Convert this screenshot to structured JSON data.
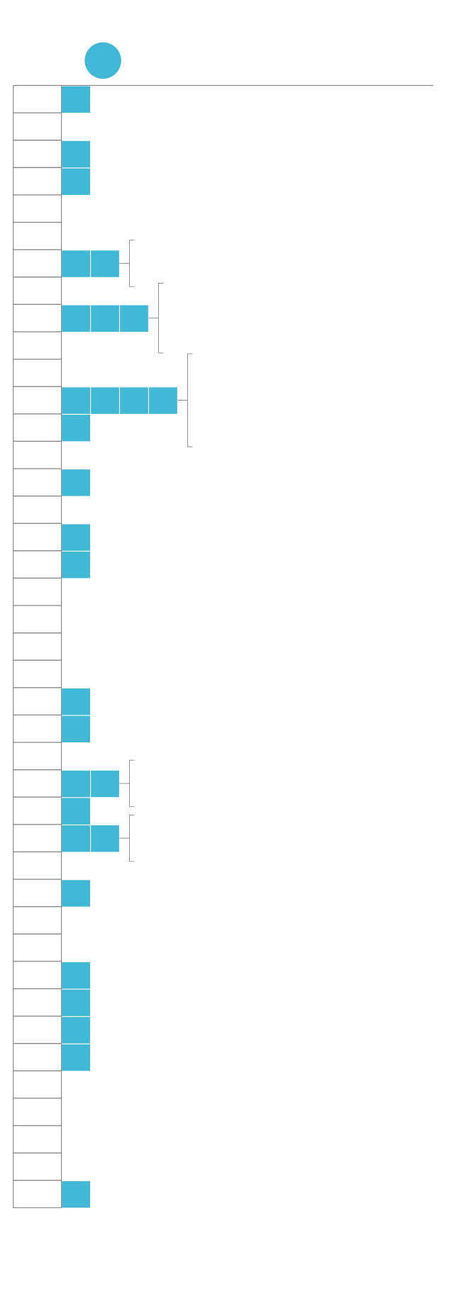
{
  "chart_data": {
    "type": "pictogram",
    "color": "#41b8d5",
    "values": [
      1,
      0,
      1,
      1,
      0,
      0,
      2,
      0,
      3,
      0,
      0,
      4,
      1,
      0,
      1,
      0,
      1,
      1,
      0,
      0,
      0,
      0,
      1,
      1,
      0,
      2,
      1,
      2,
      0,
      1,
      0,
      0,
      1,
      1,
      1,
      1,
      0,
      0,
      0,
      0,
      1
    ]
  }
}
